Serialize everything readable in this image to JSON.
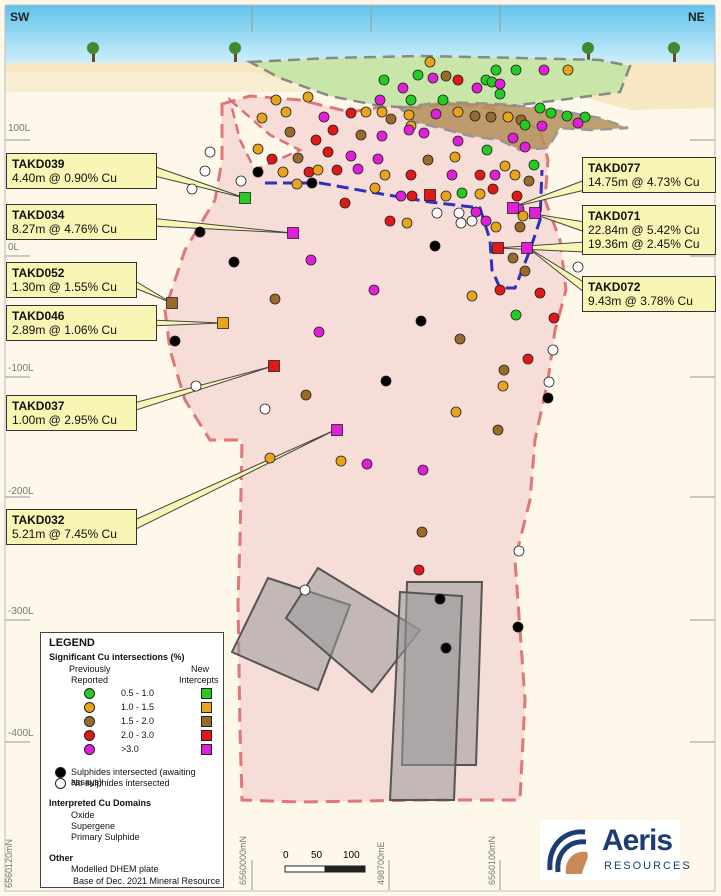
{
  "header": {
    "left_dir": "SW",
    "right_dir": "NE"
  },
  "elevations": [
    "100L",
    "0L",
    "-100L",
    "-200L",
    "-300L",
    "-400L"
  ],
  "eastings": [
    "6560120mN",
    "6560000mN",
    "498700mE",
    "6560100mN"
  ],
  "callouts": [
    {
      "hole": "TAKD039",
      "result": "4.40m @ 0.90% Cu"
    },
    {
      "hole": "TAKD034",
      "result": "8.27m @ 4.76% Cu"
    },
    {
      "hole": "TAKD052",
      "result": "1.30m @ 1.55% Cu"
    },
    {
      "hole": "TAKD046",
      "result": "2.89m @ 1.06% Cu"
    },
    {
      "hole": "TAKD037",
      "result": "1.00m @ 2.95% Cu"
    },
    {
      "hole": "TAKD032",
      "result": "5.21m @ 7.45% Cu"
    },
    {
      "hole": "TAKD077",
      "result": "14.75m @ 4.73% Cu"
    },
    {
      "hole": "TAKD071",
      "result": "22.84m @ 5.42% Cu",
      "result2": "19.36m @ 2.45% Cu"
    },
    {
      "hole": "TAKD072",
      "result": "9.43m @ 3.78% Cu"
    }
  ],
  "legend": {
    "title": "LEGEND",
    "sig_title": "Significant Cu intersections (%)",
    "prev_label_1": "Previously",
    "prev_label_2": "Reported",
    "new_label_1": "New",
    "new_label_2": "Intercepts",
    "grades": [
      {
        "label": "0.5 - 1.0",
        "color": "#22cc22"
      },
      {
        "label": "1.0 - 1.5",
        "color": "#e8a51c"
      },
      {
        "label": "1.5 - 2.0",
        "color": "#9a6a2a"
      },
      {
        "label": "2.0 - 3.0",
        "color": "#e01818"
      },
      {
        "label": ">3.0",
        "color": "#e020d8"
      }
    ],
    "sulphides": "Sulphides intersected (awaiting assays)",
    "no_sulphides": "No sulphides intersected",
    "domains_title": "Interpreted Cu Domains",
    "oxide": "Oxide",
    "supergene": "Supergene",
    "primary": "Primary Sulphide",
    "other_title": "Other",
    "dhem": "Modelled DHEM plate",
    "resource": "Base of Dec. 2021 Mineral Resource"
  },
  "scale": {
    "labels": [
      "0",
      "50",
      "100"
    ]
  },
  "logo": {
    "name": "Aeris",
    "sub": "RESOURCES"
  },
  "colors": {
    "oxide": "#c8e6a8",
    "supergene": "#b5905a",
    "primary": "#f6dcd8",
    "boundary": "#e07070",
    "resource_line": "#3030c0",
    "sky": "#5fc3ec"
  }
}
